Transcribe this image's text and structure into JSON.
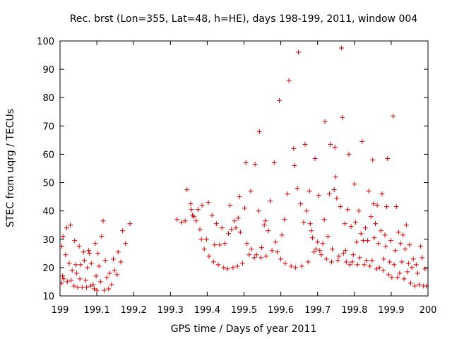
{
  "chart_data": {
    "type": "scatter",
    "title": "Rec. brst (Lon=355, Lat=48, h=HE), days 198-199, 2011, window 004",
    "xlabel": "GPS time / Days of year 2011",
    "ylabel": "STEC from uqrg / TECUs",
    "xlim": [
      199,
      200
    ],
    "ylim": [
      10,
      100
    ],
    "grid": false,
    "marker": "+",
    "colors": {
      "marker": "#cc0000",
      "axis": "#000000",
      "background": "#ffffff"
    },
    "x_ticks": [
      "199",
      "199.1",
      "199.2",
      "199.3",
      "199.4",
      "199.5",
      "199.6",
      "199.7",
      "199.8",
      "199.9",
      "200"
    ],
    "x_tick_values": [
      199.0,
      199.1,
      199.2,
      199.3,
      199.4,
      199.5,
      199.6,
      199.7,
      199.8,
      199.9,
      200.0
    ],
    "y_ticks": [
      "10",
      "20",
      "30",
      "40",
      "50",
      "60",
      "70",
      "80",
      "90",
      "100"
    ],
    "y_tick_values": [
      10,
      20,
      30,
      40,
      50,
      60,
      70,
      80,
      90,
      100
    ],
    "series": [
      {
        "name": "STEC",
        "points": [
          [
            199.005,
            27.5
          ],
          [
            199.008,
            31.0
          ],
          [
            199.005,
            14.5
          ],
          [
            199.007,
            17.0
          ],
          [
            199.01,
            16.0
          ],
          [
            199.015,
            24.5
          ],
          [
            199.018,
            34.0
          ],
          [
            199.02,
            15.0
          ],
          [
            199.025,
            21.5
          ],
          [
            199.028,
            35.0
          ],
          [
            199.03,
            15.5
          ],
          [
            199.033,
            19.0
          ],
          [
            199.038,
            13.5
          ],
          [
            199.04,
            29.5
          ],
          [
            199.043,
            21.0
          ],
          [
            199.045,
            18.0
          ],
          [
            199.048,
            13.0
          ],
          [
            199.052,
            27.5
          ],
          [
            199.054,
            16.0
          ],
          [
            199.056,
            21.0
          ],
          [
            199.06,
            13.0
          ],
          [
            199.064,
            25.5
          ],
          [
            199.066,
            22.5
          ],
          [
            199.07,
            15.5
          ],
          [
            199.072,
            13.0
          ],
          [
            199.074,
            20.0
          ],
          [
            199.078,
            26.0
          ],
          [
            199.08,
            25.0
          ],
          [
            199.083,
            13.5
          ],
          [
            199.085,
            21.5
          ],
          [
            199.09,
            14.0
          ],
          [
            199.093,
            12.5
          ],
          [
            199.096,
            28.5
          ],
          [
            199.098,
            17.0
          ],
          [
            199.1,
            12.0
          ],
          [
            199.103,
            25.0
          ],
          [
            199.106,
            20.5
          ],
          [
            199.11,
            15.0
          ],
          [
            199.113,
            31.0
          ],
          [
            199.117,
            36.5
          ],
          [
            199.12,
            12.0
          ],
          [
            199.123,
            22.5
          ],
          [
            199.127,
            16.5
          ],
          [
            199.132,
            12.5
          ],
          [
            199.135,
            18.0
          ],
          [
            199.14,
            14.0
          ],
          [
            199.145,
            23.0
          ],
          [
            199.148,
            19.0
          ],
          [
            199.155,
            17.5
          ],
          [
            199.158,
            25.5
          ],
          [
            199.165,
            22.0
          ],
          [
            199.17,
            33.0
          ],
          [
            199.178,
            28.5
          ],
          [
            199.19,
            35.5
          ],
          [
            199.318,
            37.0
          ],
          [
            199.33,
            36.0
          ],
          [
            199.34,
            36.5
          ],
          [
            199.345,
            47.5
          ],
          [
            199.355,
            42.5
          ],
          [
            199.357,
            40.5
          ],
          [
            199.36,
            38.5
          ],
          [
            199.364,
            38.0
          ],
          [
            199.37,
            36.5
          ],
          [
            199.375,
            40.5
          ],
          [
            199.38,
            33.5
          ],
          [
            199.384,
            30.0
          ],
          [
            199.386,
            42.0
          ],
          [
            199.392,
            26.5
          ],
          [
            199.398,
            30.0
          ],
          [
            199.403,
            43.0
          ],
          [
            199.405,
            24.0
          ],
          [
            199.413,
            38.5
          ],
          [
            199.417,
            22.0
          ],
          [
            199.42,
            28.0
          ],
          [
            199.425,
            35.5
          ],
          [
            199.43,
            21.0
          ],
          [
            199.434,
            28.0
          ],
          [
            199.44,
            34.0
          ],
          [
            199.445,
            20.0
          ],
          [
            199.448,
            28.5
          ],
          [
            199.455,
            19.5
          ],
          [
            199.458,
            32.0
          ],
          [
            199.462,
            42.0
          ],
          [
            199.466,
            33.5
          ],
          [
            199.47,
            20.0
          ],
          [
            199.474,
            36.5
          ],
          [
            199.478,
            34.0
          ],
          [
            199.482,
            20.5
          ],
          [
            199.484,
            37.5
          ],
          [
            199.488,
            45.0
          ],
          [
            199.49,
            32.5
          ],
          [
            199.496,
            21.5
          ],
          [
            199.502,
            41.0
          ],
          [
            199.505,
            57.0
          ],
          [
            199.508,
            28.5
          ],
          [
            199.514,
            24.5
          ],
          [
            199.518,
            47.0
          ],
          [
            199.52,
            26.5
          ],
          [
            199.528,
            23.5
          ],
          [
            199.53,
            56.5
          ],
          [
            199.534,
            24.5
          ],
          [
            199.54,
            40.0
          ],
          [
            199.542,
            68.0
          ],
          [
            199.546,
            23.5
          ],
          [
            199.548,
            27.0
          ],
          [
            199.555,
            35.0
          ],
          [
            199.558,
            36.5
          ],
          [
            199.56,
            24.0
          ],
          [
            199.566,
            33.0
          ],
          [
            199.571,
            43.5
          ],
          [
            199.576,
            26.0
          ],
          [
            199.582,
            57.0
          ],
          [
            199.586,
            29.0
          ],
          [
            199.59,
            25.5
          ],
          [
            199.596,
            79.0
          ],
          [
            199.6,
            23.0
          ],
          [
            199.603,
            31.5
          ],
          [
            199.61,
            37.0
          ],
          [
            199.612,
            21.5
          ],
          [
            199.618,
            46.0
          ],
          [
            199.622,
            86.0
          ],
          [
            199.628,
            20.5
          ],
          [
            199.635,
            62.0
          ],
          [
            199.637,
            56.0
          ],
          [
            199.64,
            20.0
          ],
          [
            199.645,
            48.0
          ],
          [
            199.648,
            96.0
          ],
          [
            199.654,
            42.5
          ],
          [
            199.657,
            20.5
          ],
          [
            199.662,
            36.0
          ],
          [
            199.666,
            63.5
          ],
          [
            199.67,
            40.0
          ],
          [
            199.674,
            22.0
          ],
          [
            199.678,
            47.0
          ],
          [
            199.68,
            35.5
          ],
          [
            199.683,
            33.0
          ],
          [
            199.686,
            30.5
          ],
          [
            199.69,
            25.5
          ],
          [
            199.693,
            58.5
          ],
          [
            199.696,
            26.5
          ],
          [
            199.7,
            29.0
          ],
          [
            199.703,
            45.5
          ],
          [
            199.706,
            26.0
          ],
          [
            199.71,
            24.5
          ],
          [
            199.714,
            28.5
          ],
          [
            199.718,
            37.0
          ],
          [
            199.72,
            71.5
          ],
          [
            199.724,
            23.0
          ],
          [
            199.728,
            31.0
          ],
          [
            199.732,
            46.0
          ],
          [
            199.735,
            63.5
          ],
          [
            199.738,
            22.0
          ],
          [
            199.74,
            26.5
          ],
          [
            199.745,
            47.5
          ],
          [
            199.747,
            62.5
          ],
          [
            199.749,
            52.0
          ],
          [
            199.752,
            44.5
          ],
          [
            199.755,
            22.5
          ],
          [
            199.758,
            24.0
          ],
          [
            199.762,
            41.5
          ],
          [
            199.765,
            97.5
          ],
          [
            199.767,
            73.0
          ],
          [
            199.77,
            25.0
          ],
          [
            199.774,
            35.5
          ],
          [
            199.776,
            26.0
          ],
          [
            199.778,
            22.0
          ],
          [
            199.782,
            40.5
          ],
          [
            199.785,
            60.0
          ],
          [
            199.788,
            21.0
          ],
          [
            199.791,
            34.5
          ],
          [
            199.794,
            22.0
          ],
          [
            199.797,
            24.5
          ],
          [
            199.8,
            49.5
          ],
          [
            199.803,
            36.0
          ],
          [
            199.806,
            29.0
          ],
          [
            199.808,
            21.0
          ],
          [
            199.812,
            40.0
          ],
          [
            199.815,
            23.5
          ],
          [
            199.818,
            32.0
          ],
          [
            199.821,
            64.5
          ],
          [
            199.824,
            29.5
          ],
          [
            199.827,
            21.0
          ],
          [
            199.83,
            34.0
          ],
          [
            199.833,
            22.5
          ],
          [
            199.836,
            29.5
          ],
          [
            199.839,
            47.0
          ],
          [
            199.842,
            20.5
          ],
          [
            199.845,
            38.0
          ],
          [
            199.848,
            22.5
          ],
          [
            199.85,
            58.0
          ],
          [
            199.852,
            42.5
          ],
          [
            199.854,
            30.5
          ],
          [
            199.857,
            35.5
          ],
          [
            199.86,
            19.5
          ],
          [
            199.862,
            42.0
          ],
          [
            199.865,
            28.5
          ],
          [
            199.868,
            20.0
          ],
          [
            199.872,
            33.0
          ],
          [
            199.875,
            46.0
          ],
          [
            199.878,
            19.0
          ],
          [
            199.88,
            23.0
          ],
          [
            199.883,
            31.5
          ],
          [
            199.885,
            27.5
          ],
          [
            199.888,
            41.5
          ],
          [
            199.89,
            58.5
          ],
          [
            199.893,
            17.5
          ],
          [
            199.896,
            22.0
          ],
          [
            199.899,
            29.5
          ],
          [
            199.902,
            16.5
          ],
          [
            199.905,
            73.5
          ],
          [
            199.908,
            21.0
          ],
          [
            199.911,
            26.0
          ],
          [
            199.914,
            41.5
          ],
          [
            199.917,
            16.5
          ],
          [
            199.92,
            32.5
          ],
          [
            199.923,
            18.0
          ],
          [
            199.926,
            28.5
          ],
          [
            199.929,
            22.0
          ],
          [
            199.932,
            31.5
          ],
          [
            199.935,
            16.0
          ],
          [
            199.938,
            26.5
          ],
          [
            199.941,
            35.0
          ],
          [
            199.944,
            18.5
          ],
          [
            199.947,
            21.5
          ],
          [
            199.95,
            28.0
          ],
          [
            199.953,
            14.5
          ],
          [
            199.956,
            20.0
          ],
          [
            199.96,
            23.0
          ],
          [
            199.964,
            13.5
          ],
          [
            199.968,
            21.0
          ],
          [
            199.972,
            18.0
          ],
          [
            199.976,
            14.0
          ],
          [
            199.98,
            27.5
          ],
          [
            199.984,
            23.5
          ],
          [
            199.988,
            13.5
          ],
          [
            199.992,
            19.5
          ],
          [
            199.996,
            13.5
          ]
        ]
      }
    ]
  }
}
